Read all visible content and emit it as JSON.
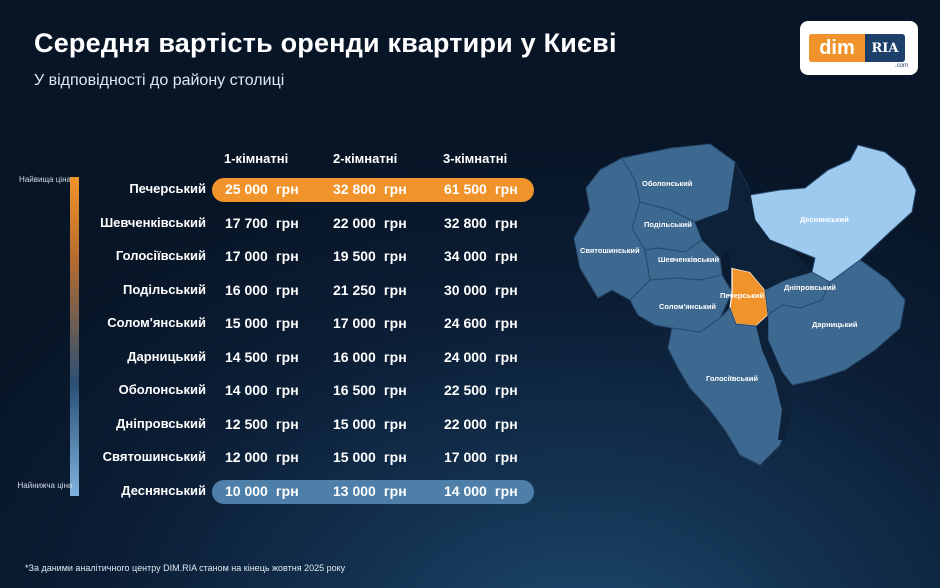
{
  "header": {
    "title": "Середня вартість оренди квартири у Києві",
    "subtitle": "У відповідності до району столиці"
  },
  "logo": {
    "left": "dim",
    "right": "RIA",
    "suffix": ".com"
  },
  "legend": {
    "top": "Найвища ціна",
    "bottom": "Найнижча ціна"
  },
  "columns": [
    "1-кімнатні",
    "2-кімнатні",
    "3-кімнатні"
  ],
  "currency": "грн",
  "rows": [
    {
      "district": "Печерський",
      "prices": [
        "25 000",
        "32 800",
        "61 500"
      ]
    },
    {
      "district": "Шевченківський",
      "prices": [
        "17 700",
        "22 000",
        "32 800"
      ]
    },
    {
      "district": "Голосіївський",
      "prices": [
        "17 000",
        "19 500",
        "34 000"
      ]
    },
    {
      "district": "Подільський",
      "prices": [
        "16 000",
        "21 250",
        "30 000"
      ]
    },
    {
      "district": "Солом'янський",
      "prices": [
        "15 000",
        "17 000",
        "24 600"
      ]
    },
    {
      "district": "Дарницький",
      "prices": [
        "14 500",
        "16 000",
        "24 000"
      ]
    },
    {
      "district": "Оболонський",
      "prices": [
        "14 000",
        "16 500",
        "22 500"
      ]
    },
    {
      "district": "Дніпровський",
      "prices": [
        "12 500",
        "15 000",
        "22 000"
      ]
    },
    {
      "district": "Святошинський",
      "prices": [
        "12 000",
        "15 000",
        "17 000"
      ]
    },
    {
      "district": "Деснянський",
      "prices": [
        "10 000",
        "13 000",
        "14 000"
      ]
    }
  ],
  "highlight": {
    "highest_color": "#f0932a",
    "lowest_color": "#4d7fa8"
  },
  "map": {
    "labels": {
      "obolonskyi": "Оболонський",
      "podilskyi": "Подільський",
      "desnianskyi": "Деснянський",
      "sviatoshynskyi": "Святошинський",
      "shevchenkivskyi": "Шевченківський",
      "pecherskyi": "Печерський",
      "dniprovskyi": "Дніпровський",
      "solomianskyi": "Солом'янський",
      "darnytskyi": "Дарницький",
      "holosiivskyi": "Голосіївський"
    },
    "colors": {
      "district": "#3d6890",
      "highest": "#f0932a",
      "lowest": "#9fcaf0",
      "river": "#0d2238",
      "border": "#28496b"
    }
  },
  "footnote": "*За даними аналітичного центру DIM.RIA станом на кінець жовтня 2025 року"
}
